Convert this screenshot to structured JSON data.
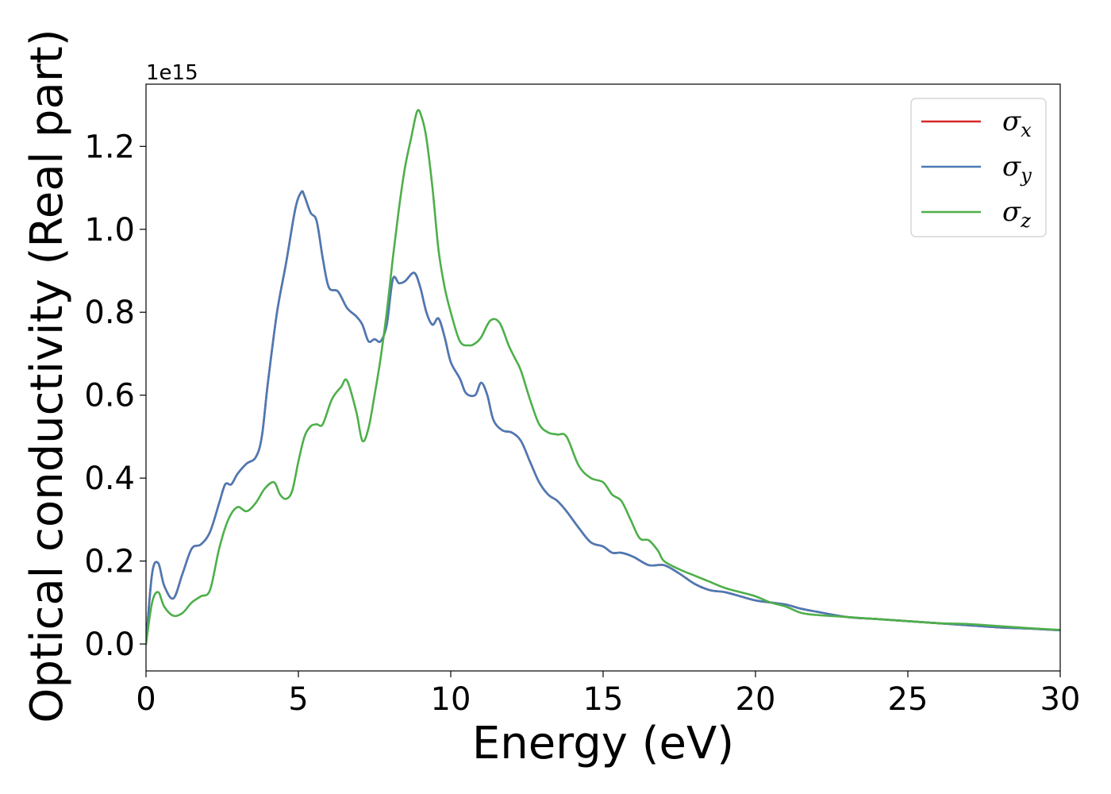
{
  "chart_data": {
    "type": "line",
    "xlabel": "Energy (eV)",
    "ylabel": "Optical conductivity (Real part)",
    "y_offset_text": "1e15",
    "xlim": [
      0,
      30
    ],
    "ylim": [
      -0.065,
      1.35
    ],
    "xticks": [
      0,
      5,
      10,
      15,
      20,
      25,
      30
    ],
    "xtick_labels": [
      "0",
      "5",
      "10",
      "15",
      "20",
      "25",
      "30"
    ],
    "yticks": [
      0.0,
      0.2,
      0.4,
      0.6,
      0.8,
      1.0,
      1.2
    ],
    "ytick_labels": [
      "0.0",
      "0.2",
      "0.4",
      "0.6",
      "0.8",
      "1.0",
      "1.2"
    ],
    "grid": false,
    "legend_position": "top-right",
    "series": [
      {
        "name": "σ",
        "subscript": "x",
        "color": "#d62728",
        "x": [
          0,
          0.2,
          0.4,
          0.6,
          0.9,
          1.2,
          1.5,
          1.8,
          2.1,
          2.4,
          2.6,
          2.8,
          3.0,
          3.3,
          3.6,
          3.8,
          4.0,
          4.3,
          4.6,
          4.9,
          5.1,
          5.2,
          5.4,
          5.6,
          5.8,
          6.0,
          6.3,
          6.6,
          6.9,
          7.1,
          7.3,
          7.5,
          7.7,
          7.9,
          8.1,
          8.3,
          8.5,
          8.8,
          9.0,
          9.2,
          9.4,
          9.6,
          9.8,
          10.0,
          10.3,
          10.5,
          10.8,
          11.0,
          11.2,
          11.4,
          11.7,
          12.0,
          12.3,
          12.6,
          12.9,
          13.2,
          13.5,
          13.8,
          14.2,
          14.6,
          15.0,
          15.3,
          15.6,
          16.0,
          16.5,
          17.0,
          17.5,
          18.0,
          18.5,
          19.0,
          19.5,
          20.0,
          20.5,
          21.0,
          21.5,
          22.0,
          23.0,
          24.0,
          25.0,
          26.0,
          27.0,
          28.0,
          29.0,
          30.0
        ],
        "values": [
          0.0,
          0.17,
          0.195,
          0.14,
          0.11,
          0.17,
          0.23,
          0.24,
          0.27,
          0.34,
          0.385,
          0.385,
          0.41,
          0.435,
          0.45,
          0.5,
          0.63,
          0.8,
          0.92,
          1.05,
          1.09,
          1.08,
          1.04,
          1.02,
          0.93,
          0.86,
          0.85,
          0.81,
          0.79,
          0.77,
          0.73,
          0.735,
          0.73,
          0.77,
          0.88,
          0.87,
          0.875,
          0.895,
          0.86,
          0.8,
          0.77,
          0.785,
          0.74,
          0.68,
          0.64,
          0.605,
          0.6,
          0.63,
          0.6,
          0.54,
          0.515,
          0.51,
          0.49,
          0.44,
          0.39,
          0.36,
          0.345,
          0.32,
          0.28,
          0.245,
          0.235,
          0.22,
          0.22,
          0.21,
          0.19,
          0.19,
          0.17,
          0.145,
          0.13,
          0.125,
          0.115,
          0.105,
          0.1,
          0.095,
          0.085,
          0.078,
          0.065,
          0.06,
          0.055,
          0.05,
          0.045,
          0.04,
          0.037,
          0.033
        ]
      },
      {
        "name": "σ",
        "subscript": "y",
        "color": "#4a7ab5",
        "x": [
          0,
          0.2,
          0.4,
          0.6,
          0.9,
          1.2,
          1.5,
          1.8,
          2.1,
          2.4,
          2.6,
          2.8,
          3.0,
          3.3,
          3.6,
          3.8,
          4.0,
          4.3,
          4.6,
          4.9,
          5.1,
          5.2,
          5.4,
          5.6,
          5.8,
          6.0,
          6.3,
          6.6,
          6.9,
          7.1,
          7.3,
          7.5,
          7.7,
          7.9,
          8.1,
          8.3,
          8.5,
          8.8,
          9.0,
          9.2,
          9.4,
          9.6,
          9.8,
          10.0,
          10.3,
          10.5,
          10.8,
          11.0,
          11.2,
          11.4,
          11.7,
          12.0,
          12.3,
          12.6,
          12.9,
          13.2,
          13.5,
          13.8,
          14.2,
          14.6,
          15.0,
          15.3,
          15.6,
          16.0,
          16.5,
          17.0,
          17.5,
          18.0,
          18.5,
          19.0,
          19.5,
          20.0,
          20.5,
          21.0,
          21.5,
          22.0,
          23.0,
          24.0,
          25.0,
          26.0,
          27.0,
          28.0,
          29.0,
          30.0
        ],
        "values": [
          0.0,
          0.17,
          0.195,
          0.14,
          0.11,
          0.17,
          0.23,
          0.24,
          0.27,
          0.34,
          0.385,
          0.385,
          0.41,
          0.435,
          0.45,
          0.5,
          0.63,
          0.8,
          0.92,
          1.05,
          1.09,
          1.08,
          1.04,
          1.02,
          0.93,
          0.86,
          0.85,
          0.81,
          0.79,
          0.77,
          0.73,
          0.735,
          0.73,
          0.77,
          0.88,
          0.87,
          0.875,
          0.895,
          0.86,
          0.8,
          0.77,
          0.785,
          0.74,
          0.68,
          0.64,
          0.605,
          0.6,
          0.63,
          0.6,
          0.54,
          0.515,
          0.51,
          0.49,
          0.44,
          0.39,
          0.36,
          0.345,
          0.32,
          0.28,
          0.245,
          0.235,
          0.22,
          0.22,
          0.21,
          0.19,
          0.19,
          0.17,
          0.145,
          0.13,
          0.125,
          0.115,
          0.105,
          0.1,
          0.095,
          0.085,
          0.078,
          0.065,
          0.06,
          0.055,
          0.05,
          0.045,
          0.04,
          0.037,
          0.033
        ]
      },
      {
        "name": "σ",
        "subscript": "z",
        "color": "#4daf4a",
        "x": [
          0,
          0.2,
          0.4,
          0.6,
          0.9,
          1.2,
          1.5,
          1.8,
          2.1,
          2.4,
          2.7,
          3.0,
          3.3,
          3.6,
          3.9,
          4.2,
          4.4,
          4.6,
          4.8,
          5.0,
          5.2,
          5.4,
          5.6,
          5.8,
          6.1,
          6.4,
          6.6,
          6.9,
          7.1,
          7.3,
          7.5,
          7.7,
          7.9,
          8.1,
          8.3,
          8.5,
          8.7,
          8.9,
          9.05,
          9.2,
          9.4,
          9.6,
          9.8,
          10.0,
          10.3,
          10.6,
          10.8,
          11.0,
          11.3,
          11.6,
          11.9,
          12.1,
          12.3,
          12.6,
          12.9,
          13.2,
          13.5,
          13.8,
          14.2,
          14.6,
          15.0,
          15.3,
          15.6,
          15.9,
          16.2,
          16.5,
          16.8,
          17.0,
          17.5,
          18.0,
          18.5,
          19.0,
          19.5,
          20.0,
          20.5,
          21.0,
          21.5,
          22.0,
          23.0,
          24.0,
          25.0,
          26.0,
          27.0,
          28.0,
          29.0,
          30.0
        ],
        "values": [
          0.0,
          0.1,
          0.125,
          0.09,
          0.068,
          0.075,
          0.1,
          0.115,
          0.13,
          0.23,
          0.3,
          0.33,
          0.32,
          0.34,
          0.375,
          0.39,
          0.36,
          0.35,
          0.37,
          0.44,
          0.5,
          0.525,
          0.53,
          0.53,
          0.59,
          0.62,
          0.635,
          0.56,
          0.49,
          0.52,
          0.6,
          0.69,
          0.8,
          0.93,
          1.05,
          1.15,
          1.22,
          1.285,
          1.27,
          1.22,
          1.1,
          0.95,
          0.86,
          0.8,
          0.73,
          0.72,
          0.725,
          0.74,
          0.78,
          0.775,
          0.72,
          0.69,
          0.66,
          0.59,
          0.53,
          0.51,
          0.505,
          0.5,
          0.43,
          0.4,
          0.39,
          0.36,
          0.345,
          0.3,
          0.255,
          0.25,
          0.225,
          0.2,
          0.18,
          0.165,
          0.15,
          0.135,
          0.125,
          0.115,
          0.1,
          0.09,
          0.075,
          0.07,
          0.065,
          0.06,
          0.055,
          0.05,
          0.048,
          0.043,
          0.038,
          0.034
        ]
      }
    ]
  }
}
